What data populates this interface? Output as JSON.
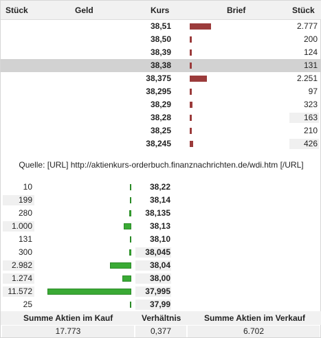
{
  "header": {
    "qty_left": "Stück",
    "bid": "Geld",
    "price": "Kurs",
    "ask": "Brief",
    "qty_right": "Stück"
  },
  "ask_rows": [
    {
      "price": "38,51",
      "qty": "2.777",
      "level": 2777
    },
    {
      "price": "38,50",
      "qty": "200",
      "level": 200
    },
    {
      "price": "38,39",
      "qty": "124",
      "level": 124
    },
    {
      "price": "38,38",
      "qty": "131",
      "level": 131
    },
    {
      "price": "38,375",
      "qty": "2.251",
      "level": 2251
    },
    {
      "price": "38,295",
      "qty": "97",
      "level": 97
    },
    {
      "price": "38,29",
      "qty": "323",
      "level": 323
    },
    {
      "price": "38,28",
      "qty": "163",
      "level": 163
    },
    {
      "price": "38,25",
      "qty": "210",
      "level": 210
    },
    {
      "price": "38,245",
      "qty": "426",
      "level": 426
    }
  ],
  "source": "Quelle: [URL] http://aktienkurs-orderbuch.finanznachrichten.de/wdi.htm [/URL]",
  "bid_rows": [
    {
      "qty": "10",
      "price": "38,22",
      "level": 10
    },
    {
      "qty": "199",
      "price": "38,14",
      "level": 199
    },
    {
      "qty": "280",
      "price": "38,135",
      "level": 280
    },
    {
      "qty": "1.000",
      "price": "38,13",
      "level": 1000
    },
    {
      "qty": "131",
      "price": "38,10",
      "level": 131
    },
    {
      "qty": "300",
      "price": "38,045",
      "level": 300
    },
    {
      "qty": "2.982",
      "price": "38,04",
      "level": 2982
    },
    {
      "qty": "1.274",
      "price": "38,00",
      "level": 1274
    },
    {
      "qty": "11.572",
      "price": "37,995",
      "level": 11572
    },
    {
      "qty": "25",
      "price": "37,99",
      "level": 25
    }
  ],
  "footer": {
    "buy_label": "Summe Aktien im Kauf",
    "ratio_label": "Verhältnis",
    "sell_label": "Summe Aktien im Verkauf",
    "buy_value": "17.773",
    "ratio_value": "0,377",
    "sell_value": "6.702"
  },
  "colors": {
    "ask_bar": "#9b3b3b",
    "bid_bar": "#3aaa35",
    "highlight_row": "#d2d2d2"
  }
}
